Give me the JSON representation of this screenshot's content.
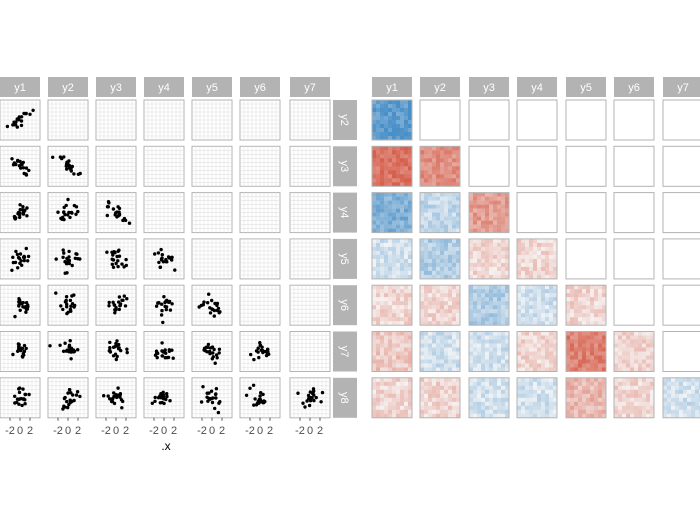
{
  "chart_data": [
    {
      "type": "scatter",
      "panel": "pairwise scatter matrix",
      "column_strips": [
        "y1",
        "y2",
        "y3",
        "y4",
        "y5",
        "y6",
        "y7"
      ],
      "row_strips": [
        "y2",
        "y3",
        "y4",
        "y5",
        "y6",
        "y7",
        "y8"
      ],
      "xlabel": ".x",
      "ylabel": "",
      "x_tick_labels": [
        "-2",
        "0",
        "2"
      ],
      "x_ticks": [
        -2,
        0,
        2
      ],
      "xlim": [
        -4,
        4
      ],
      "ylim": [
        -4,
        4
      ],
      "grid": true,
      "points_per_panel": 20,
      "correlation_by_pair": [
        [
          0.8
        ],
        [
          -0.8,
          -0.6
        ],
        [
          0.6,
          0.2,
          -0.5
        ],
        [
          0.1,
          0.3,
          -0.1,
          -0.1
        ],
        [
          -0.1,
          -0.1,
          0.3,
          0.1,
          -0.1
        ],
        [
          -0.2,
          0.1,
          0.1,
          -0.1,
          -0.7,
          -0.1
        ],
        [
          -0.1,
          -0.1,
          0.1,
          0.1,
          -0.3,
          -0.1,
          0.1
        ]
      ]
    },
    {
      "type": "heatmap",
      "panel": "correlation tile matrix",
      "column_strips": [
        "y1",
        "y2",
        "y3",
        "y4",
        "y5",
        "y6",
        "y7"
      ],
      "row_strips": [
        "y2",
        "y3",
        "y4",
        "y5",
        "y6",
        "y7",
        "y8"
      ],
      "values": [
        [
          0.8
        ],
        [
          -0.8,
          -0.6
        ],
        [
          0.6,
          0.2,
          -0.5
        ],
        [
          0.1,
          0.3,
          -0.1,
          -0.1
        ],
        [
          -0.1,
          -0.1,
          0.3,
          0.1,
          -0.1
        ],
        [
          -0.2,
          0.1,
          0.1,
          -0.1,
          -0.7,
          -0.1
        ],
        [
          -0.1,
          -0.1,
          0.1,
          0.1,
          -0.3,
          -0.1,
          0.1
        ]
      ],
      "colors": {
        "positive": "#4a90c8",
        "negative": "#d6604d",
        "neutral": "#f7f7f7"
      }
    }
  ],
  "colors": {
    "strip_fill": "#b3b3b3",
    "strip_text": "#ffffff",
    "panel_border": "#b3b3b3",
    "grid": "#e0e0e0",
    "point": "#000000"
  }
}
